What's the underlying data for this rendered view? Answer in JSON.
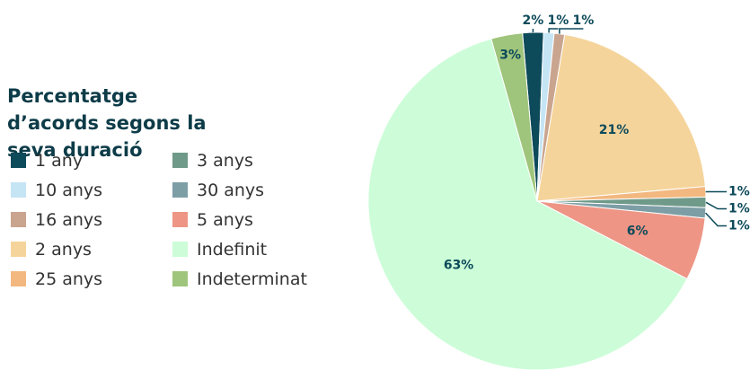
{
  "chart_data": {
    "type": "pie",
    "title": "Percentatge d’acords segons la seva duració",
    "categories": [
      "1 any",
      "10 anys",
      "16 anys",
      "2 anys",
      "25 anys",
      "3 anys",
      "30 anys",
      "5 anys",
      "Indefinit",
      "Indeterminat"
    ],
    "values": [
      2,
      1,
      1,
      21,
      1,
      1,
      1,
      6,
      63,
      3
    ],
    "value_labels": [
      "2%",
      "1%",
      "1%",
      "21%",
      "1%",
      "1%",
      "1%",
      "6%",
      "63%",
      "3%"
    ],
    "colors": [
      "#0d4a5a",
      "#c5e5f5",
      "#c9a48f",
      "#f5d49b",
      "#f2b880",
      "#6f9a8a",
      "#7e9ea6",
      "#ee9585",
      "#ccfdd8",
      "#9fc57c"
    ]
  }
}
